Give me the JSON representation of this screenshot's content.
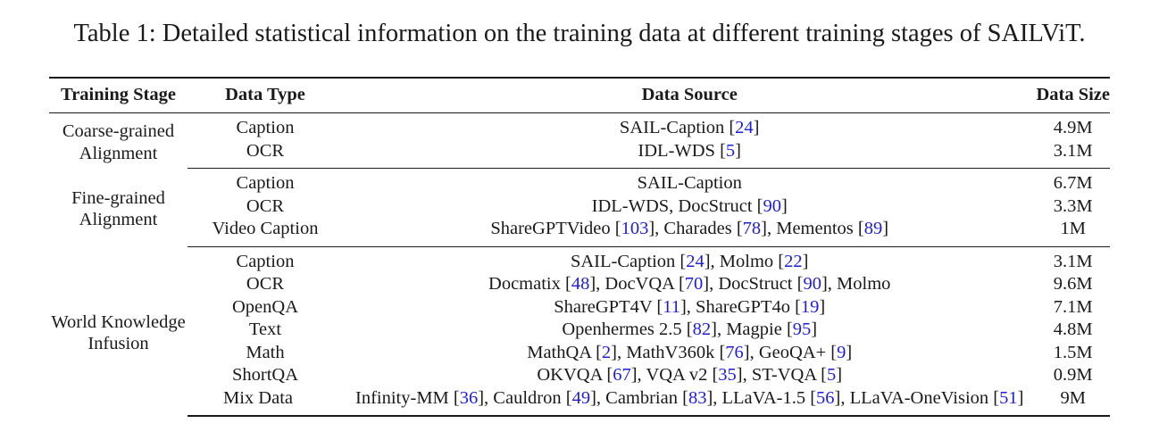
{
  "caption": "Table 1: Detailed statistical information on the training data at different training stages of SAILViT.",
  "headers": {
    "stage": "Training Stage",
    "type": "Data Type",
    "source": "Data Source",
    "size": "Data Size"
  },
  "groups": [
    {
      "stage": [
        "Coarse-grained",
        "Alignment"
      ],
      "rows": [
        {
          "type": "Caption",
          "source": [
            {
              "t": "SAIL-Caption ["
            },
            {
              "t": "24",
              "ref": true
            },
            {
              "t": "]"
            }
          ],
          "size": "4.9M"
        },
        {
          "type": "OCR",
          "source": [
            {
              "t": "IDL-WDS ["
            },
            {
              "t": "5",
              "ref": true
            },
            {
              "t": "]"
            }
          ],
          "size": "3.1M"
        }
      ]
    },
    {
      "stage": [
        "Fine-grained",
        "Alignment"
      ],
      "rows": [
        {
          "type": "Caption",
          "source": [
            {
              "t": "SAIL-Caption"
            }
          ],
          "size": "6.7M"
        },
        {
          "type": "OCR",
          "source": [
            {
              "t": "IDL-WDS, DocStruct ["
            },
            {
              "t": "90",
              "ref": true
            },
            {
              "t": "]"
            }
          ],
          "size": "3.3M"
        },
        {
          "type": "Video Caption",
          "source": [
            {
              "t": "ShareGPTVideo ["
            },
            {
              "t": "103",
              "ref": true
            },
            {
              "t": "], Charades ["
            },
            {
              "t": "78",
              "ref": true
            },
            {
              "t": "], Mementos ["
            },
            {
              "t": "89",
              "ref": true
            },
            {
              "t": "]"
            }
          ],
          "size": "1M"
        }
      ]
    },
    {
      "stage": [
        "World Knowledge",
        "Infusion"
      ],
      "rows": [
        {
          "type": "Caption",
          "source": [
            {
              "t": "SAIL-Caption ["
            },
            {
              "t": "24",
              "ref": true
            },
            {
              "t": "], Molmo ["
            },
            {
              "t": "22",
              "ref": true
            },
            {
              "t": "]"
            }
          ],
          "size": "3.1M"
        },
        {
          "type": "OCR",
          "source": [
            {
              "t": "Docmatix ["
            },
            {
              "t": "48",
              "ref": true
            },
            {
              "t": "], DocVQA ["
            },
            {
              "t": "70",
              "ref": true
            },
            {
              "t": "], DocStruct ["
            },
            {
              "t": "90",
              "ref": true
            },
            {
              "t": "], Molmo"
            }
          ],
          "size": "9.6M"
        },
        {
          "type": "OpenQA",
          "source": [
            {
              "t": "ShareGPT4V ["
            },
            {
              "t": "11",
              "ref": true
            },
            {
              "t": "], ShareGPT4o ["
            },
            {
              "t": "19",
              "ref": true
            },
            {
              "t": "]"
            }
          ],
          "size": "7.1M"
        },
        {
          "type": "Text",
          "source": [
            {
              "t": "Openhermes 2.5 ["
            },
            {
              "t": "82",
              "ref": true
            },
            {
              "t": "], Magpie ["
            },
            {
              "t": "95",
              "ref": true
            },
            {
              "t": "]"
            }
          ],
          "size": "4.8M"
        },
        {
          "type": "Math",
          "source": [
            {
              "t": "MathQA ["
            },
            {
              "t": "2",
              "ref": true
            },
            {
              "t": "], MathV360k ["
            },
            {
              "t": "76",
              "ref": true
            },
            {
              "t": "], GeoQA+ ["
            },
            {
              "t": "9",
              "ref": true
            },
            {
              "t": "]"
            }
          ],
          "size": "1.5M"
        },
        {
          "type": "ShortQA",
          "source": [
            {
              "t": "OKVQA ["
            },
            {
              "t": "67",
              "ref": true
            },
            {
              "t": "], VQA v2 ["
            },
            {
              "t": "35",
              "ref": true
            },
            {
              "t": "], ST-VQA ["
            },
            {
              "t": "5",
              "ref": true
            },
            {
              "t": "]"
            }
          ],
          "size": "0.9M"
        },
        {
          "type": "Mix Data",
          "source": [
            {
              "t": "Infinity-MM ["
            },
            {
              "t": "36",
              "ref": true
            },
            {
              "t": "], Cauldron ["
            },
            {
              "t": "49",
              "ref": true
            },
            {
              "t": "], Cambrian ["
            },
            {
              "t": "83",
              "ref": true
            },
            {
              "t": "], LLaVA-1.5 ["
            },
            {
              "t": "56",
              "ref": true
            },
            {
              "t": "], LLaVA-OneVision ["
            },
            {
              "t": "51",
              "ref": true
            },
            {
              "t": "]"
            }
          ],
          "size": "9M"
        }
      ]
    }
  ],
  "colors": {
    "text": "#1a1a1a",
    "citation": "#1d1de0"
  }
}
